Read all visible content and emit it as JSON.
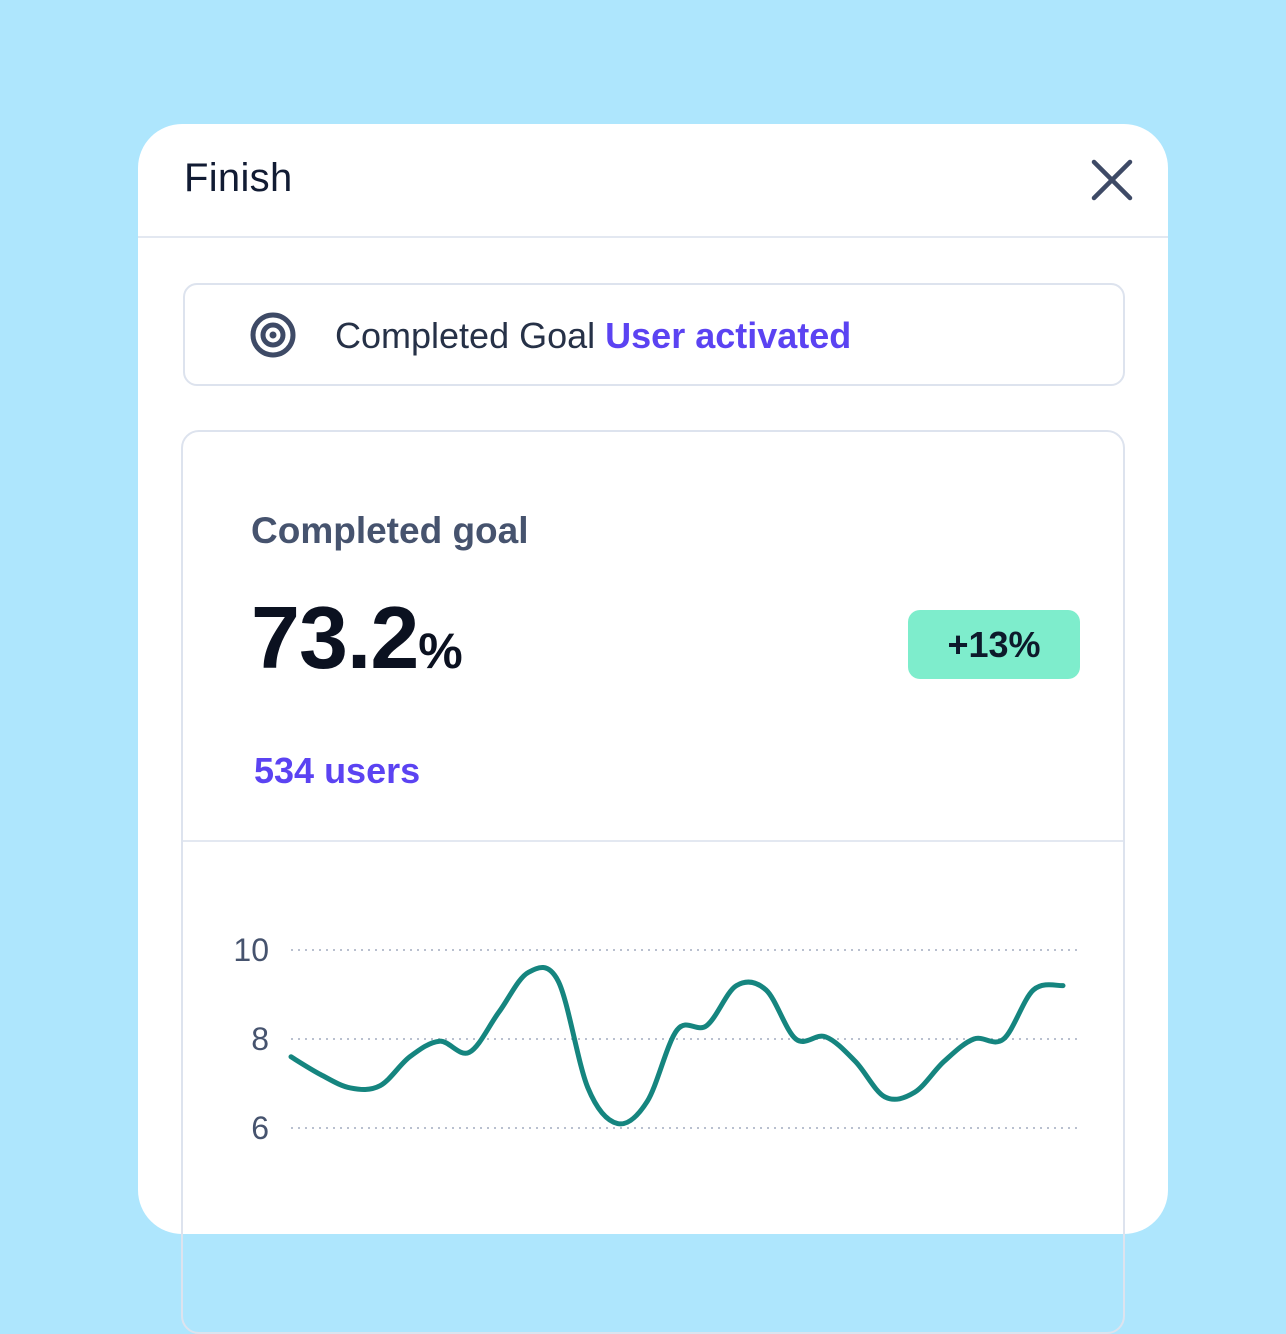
{
  "panel": {
    "title": "Finish"
  },
  "goal": {
    "prefix": "Completed Goal",
    "name": "User activated"
  },
  "metric": {
    "label": "Completed goal",
    "value": "73.2",
    "unit": "%",
    "change": "+13%",
    "users": "534 users"
  },
  "colors": {
    "background": "#aee6fd",
    "accent": "#5b43f2",
    "badge": "#7eedcc",
    "line": "#15857f"
  },
  "icons": {
    "close": "close-icon",
    "goal": "target-icon"
  },
  "chart_data": {
    "type": "line",
    "ylim": [
      6,
      10
    ],
    "y_ticks": [
      10,
      8,
      6
    ],
    "grid": true,
    "series": [
      {
        "values": [
          7.6,
          7.2,
          6.9,
          6.95,
          7.6,
          7.95,
          7.7,
          8.6,
          9.5,
          9.3,
          6.9,
          6.1,
          6.6,
          8.2,
          8.3,
          9.2,
          9.1,
          8.0,
          8.05,
          7.5,
          6.7,
          6.8,
          7.5,
          8.0,
          8.0,
          9.1,
          9.2
        ]
      }
    ]
  }
}
